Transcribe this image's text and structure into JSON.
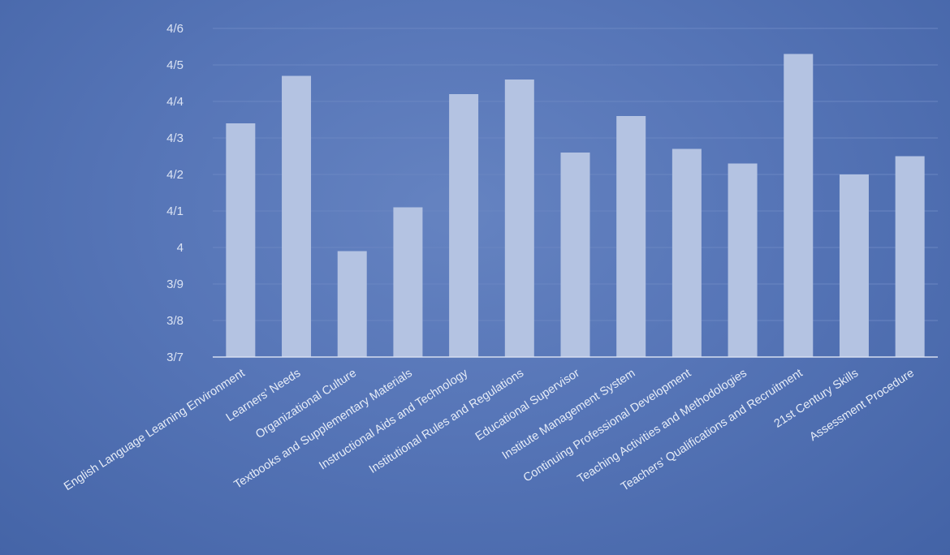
{
  "chart_data": {
    "type": "bar",
    "title": "",
    "xlabel": "",
    "ylabel": "",
    "grid": true,
    "legend": "none",
    "y_ticks": [
      3.7,
      3.8,
      3.9,
      4.0,
      4.1,
      4.2,
      4.3,
      4.4,
      4.5,
      4.6
    ],
    "y_tick_labels": [
      "3/7",
      "3/8",
      "3/9",
      "4",
      "4/1",
      "4/2",
      "4/3",
      "4/4",
      "4/5",
      "4/6"
    ],
    "ylim": [
      3.7,
      4.6
    ],
    "categories": [
      "English Language Learning Environment",
      "Learners’ Needs",
      "Organizational Culture",
      "Textbooks  and Supplementary Materials",
      "Instructional Aids and Technology",
      "Institutional Rules and Regulations",
      "Educational Supervisor",
      "Institute Management System",
      "Continuing Professional Development",
      "Teaching Activities and Methodologies",
      "Teachers’ Qualifications and Recruitment",
      "21st Century Skills",
      "Assessment Procedure"
    ],
    "values": [
      4.34,
      4.47,
      3.99,
      4.11,
      4.42,
      4.46,
      4.26,
      4.36,
      4.27,
      4.23,
      4.53,
      4.2,
      4.25
    ],
    "colors": {
      "bar": "#b4c3e2",
      "axis": "#d6def0",
      "grid": "#6a86c2",
      "text": "#e6ecf7"
    }
  }
}
